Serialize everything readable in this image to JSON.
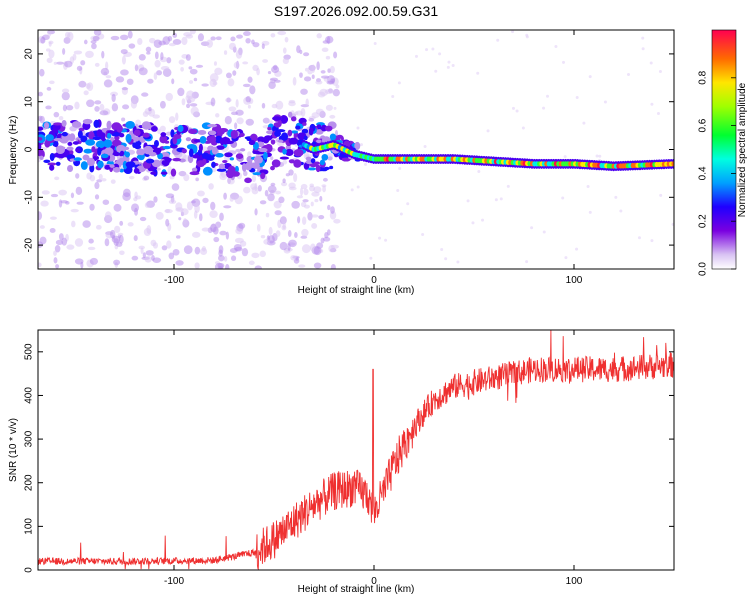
{
  "title": "S197.2026.092.00.59.G31",
  "chart_data": [
    {
      "type": "heatmap",
      "xlabel": "Height of straight line (km)",
      "ylabel": "Frequency (Hz)",
      "xlim": [
        -168,
        150
      ],
      "ylim": [
        -25,
        25
      ],
      "xticks": [
        -100,
        0,
        100
      ],
      "yticks": [
        -20,
        -10,
        0,
        10,
        20
      ],
      "colorbar": {
        "label": "Normalized spectral amplitude",
        "range": [
          0,
          1
        ],
        "ticks": [
          "0.0",
          "0.2",
          "0.4",
          "0.6",
          "0.8"
        ]
      },
      "ridge": [
        {
          "x": -168,
          "y": 1
        },
        {
          "x": -140,
          "y": 1
        },
        {
          "x": -110,
          "y": 0
        },
        {
          "x": -80,
          "y": 0
        },
        {
          "x": -60,
          "y": -2
        },
        {
          "x": -45,
          "y": 3
        },
        {
          "x": -30,
          "y": 0
        },
        {
          "x": -20,
          "y": 1
        },
        {
          "x": -10,
          "y": -1
        },
        {
          "x": 0,
          "y": -2
        },
        {
          "x": 20,
          "y": -2
        },
        {
          "x": 40,
          "y": -2
        },
        {
          "x": 60,
          "y": -2.5
        },
        {
          "x": 80,
          "y": -3
        },
        {
          "x": 100,
          "y": -3
        },
        {
          "x": 120,
          "y": -3.5
        },
        {
          "x": 150,
          "y": -3
        }
      ]
    },
    {
      "type": "line",
      "xlabel": "Height of straight line (km)",
      "ylabel": "SNR (10 * v/v)",
      "xlim": [
        -168,
        150
      ],
      "ylim": [
        0,
        550
      ],
      "xticks": [
        -100,
        0,
        100
      ],
      "yticks": [
        0,
        100,
        200,
        300,
        400,
        500
      ],
      "color": "#ef3030",
      "trend": [
        {
          "x": -168,
          "y": 20
        },
        {
          "x": -120,
          "y": 20
        },
        {
          "x": -80,
          "y": 22
        },
        {
          "x": -60,
          "y": 40
        },
        {
          "x": -50,
          "y": 70
        },
        {
          "x": -40,
          "y": 110
        },
        {
          "x": -30,
          "y": 150
        },
        {
          "x": -20,
          "y": 180
        },
        {
          "x": -10,
          "y": 190
        },
        {
          "x": -3,
          "y": 170
        },
        {
          "x": 0,
          "y": 130
        },
        {
          "x": 5,
          "y": 180
        },
        {
          "x": 10,
          "y": 240
        },
        {
          "x": 20,
          "y": 330
        },
        {
          "x": 30,
          "y": 390
        },
        {
          "x": 40,
          "y": 420
        },
        {
          "x": 60,
          "y": 440
        },
        {
          "x": 80,
          "y": 460
        },
        {
          "x": 100,
          "y": 460
        },
        {
          "x": 120,
          "y": 460
        },
        {
          "x": 150,
          "y": 470
        }
      ]
    }
  ]
}
